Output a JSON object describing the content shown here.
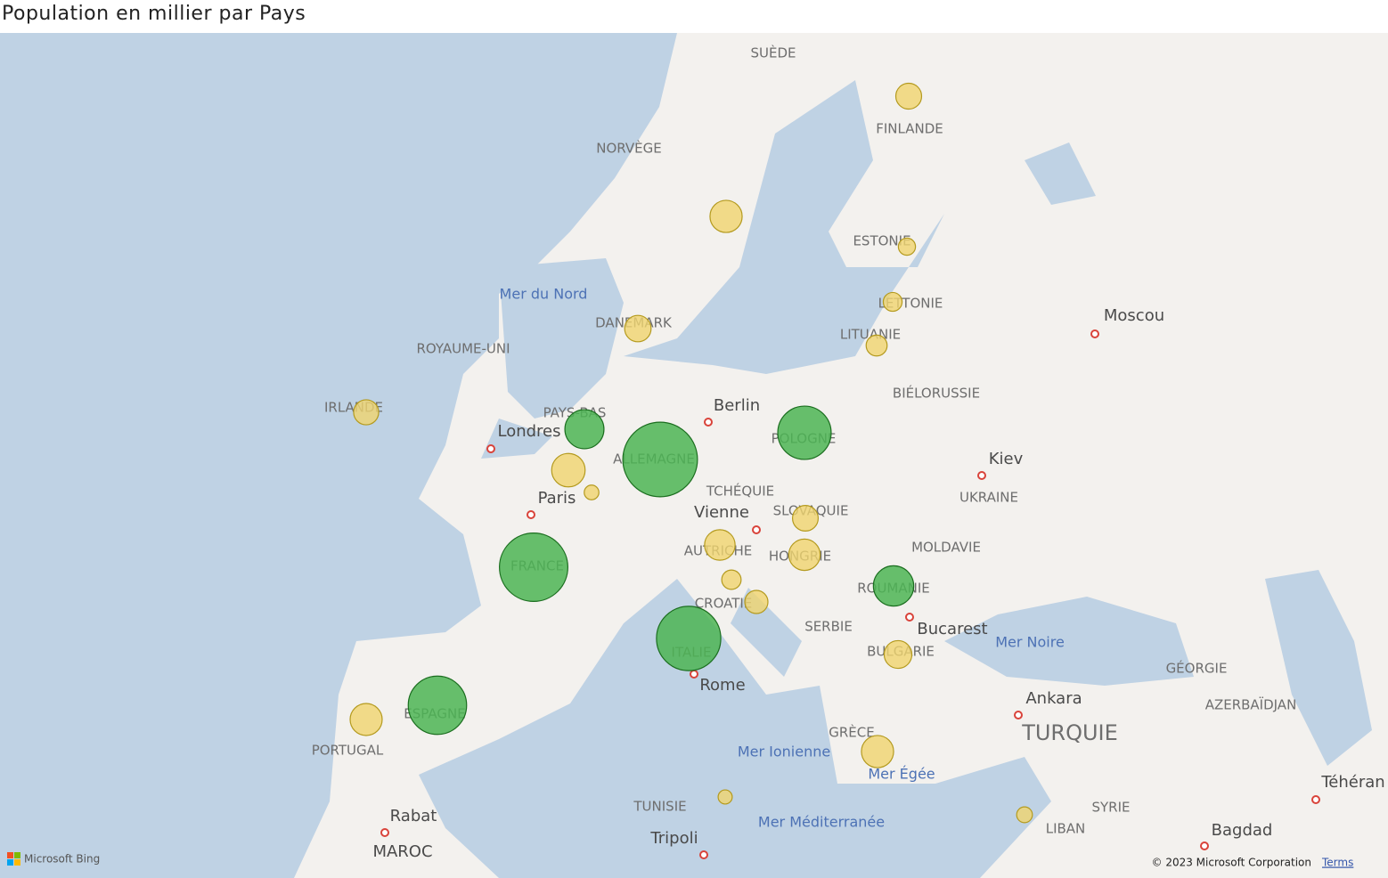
{
  "title": "Population en millier par Pays",
  "map": {
    "labels": [
      "SUÈDE",
      "NORVÈGE",
      "FINLANDE",
      "Mer du Nord",
      "DANEMARK",
      "ESTONIE",
      "LETTONIE",
      "LITUANIE",
      "Moscou",
      "ROYAUME-UNI",
      "BIÉLORUSSIE",
      "IRLANDE",
      "PAYS-BAS",
      "Berlin",
      "Londres",
      "POLOGNE",
      "ALLEMAGNE",
      "Kiev",
      "TCHÉQUIE",
      "UKRAINE",
      "Paris",
      "Vienne",
      "SLOVAQUIE",
      "MOLDAVIE",
      "AUTRICHE",
      "HONGRIE",
      "FRANCE",
      "ROUMANIE",
      "CROATIE",
      "SERBIE",
      "Bucarest",
      "Mer Noire",
      "ITALIE",
      "BULGARIE",
      "GÉORGIE",
      "Rome",
      "Ankara",
      "AZERBAÏDJAN",
      "ESPAGNE",
      "TURQUIE",
      "GRÈCE",
      "Mer Ionienne",
      "PORTUGAL",
      "Mer Égée",
      "Téhéran",
      "TUNISIE",
      "SYRIE",
      "Rabat",
      "Mer Méditerranée",
      "LIBAN",
      "Tripoli",
      "Bagdad",
      "MAROC"
    ]
  },
  "bubbles": [
    {
      "value": 5500,
      "color": "#f0d56e"
    },
    {
      "value": 10400,
      "color": "#f0d56e"
    },
    {
      "value": 1300,
      "color": "#f0d56e"
    },
    {
      "value": 1900,
      "color": "#f0d56e"
    },
    {
      "value": 2800,
      "color": "#f0d56e"
    },
    {
      "value": 5900,
      "color": "#f0d56e"
    },
    {
      "value": 5000,
      "color": "#f0d56e"
    },
    {
      "value": 17500,
      "color": "#4cb553"
    },
    {
      "value": 11600,
      "color": "#f0d56e"
    },
    {
      "value": 640,
      "color": "#f0d56e"
    },
    {
      "value": 83000,
      "color": "#4cb553"
    },
    {
      "value": 38000,
      "color": "#4cb553"
    },
    {
      "value": 5400,
      "color": "#f0d56e"
    },
    {
      "value": 9000,
      "color": "#f0d56e"
    },
    {
      "value": 9700,
      "color": "#f0d56e"
    },
    {
      "value": 68000,
      "color": "#4cb553"
    },
    {
      "value": 2100,
      "color": "#f0d56e"
    },
    {
      "value": 3900,
      "color": "#f0d56e"
    },
    {
      "value": 19000,
      "color": "#4cb553"
    },
    {
      "value": 59000,
      "color": "#4cb553"
    },
    {
      "value": 6800,
      "color": "#f0d56e"
    },
    {
      "value": 47000,
      "color": "#4cb553"
    },
    {
      "value": 10300,
      "color": "#f0d56e"
    },
    {
      "value": 10400,
      "color": "#f0d56e"
    },
    {
      "value": 520,
      "color": "#f0d56e"
    },
    {
      "value": 900,
      "color": "#f0d56e"
    }
  ],
  "attribution": {
    "bing": "Microsoft Bing",
    "copyright": "© 2023 Microsoft Corporation",
    "terms": "Terms"
  }
}
